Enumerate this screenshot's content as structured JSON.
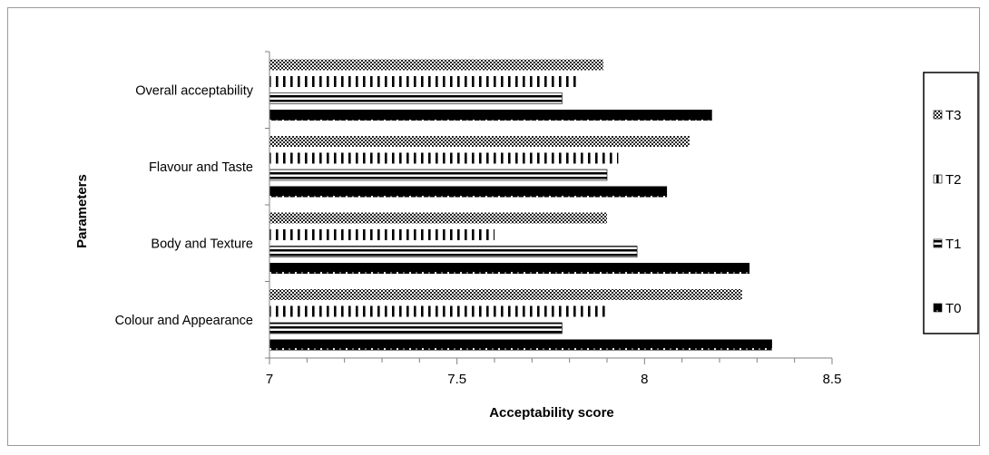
{
  "chart_data": {
    "type": "bar",
    "orientation": "horizontal",
    "title": "",
    "xlabel": "Acceptability score",
    "ylabel": "Parameters",
    "xlim": [
      7,
      8.5
    ],
    "xticks": [
      "7",
      "7.5",
      "8",
      "8.5"
    ],
    "categories": [
      "Colour and Appearance",
      "Body and Texture",
      "Flavour and Taste",
      "Overall acceptability"
    ],
    "series": [
      {
        "name": "T0",
        "values": [
          8.34,
          8.28,
          8.06,
          8.18
        ],
        "pattern": "dotted-black"
      },
      {
        "name": "T1",
        "values": [
          7.78,
          7.98,
          7.9,
          7.78
        ],
        "pattern": "horizontal-lines"
      },
      {
        "name": "T2",
        "values": [
          7.9,
          7.6,
          7.93,
          7.82
        ],
        "pattern": "vertical-lines"
      },
      {
        "name": "T3",
        "values": [
          8.26,
          7.9,
          8.12,
          7.89
        ],
        "pattern": "checker"
      }
    ],
    "legend": {
      "position": "right",
      "order": [
        "T3",
        "T2",
        "T1",
        "T0"
      ]
    },
    "grid": false
  }
}
